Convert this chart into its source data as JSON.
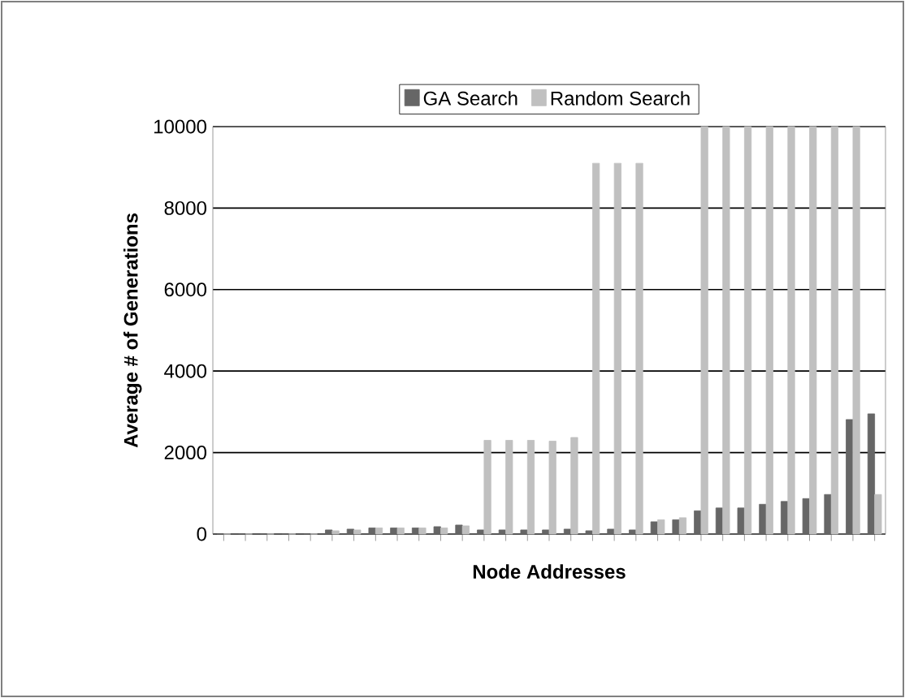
{
  "chart_data": {
    "type": "bar",
    "xlabel": "Node Addresses",
    "ylabel": "Average # of Generations",
    "categories": [
      null,
      null,
      null,
      null,
      null,
      null,
      null,
      null,
      null,
      null,
      null,
      null,
      null,
      null,
      null,
      null,
      null,
      null,
      null,
      null,
      null,
      null,
      null,
      null,
      null,
      null,
      null,
      null,
      null,
      null,
      null
    ],
    "series": [
      {
        "name": "GA Search",
        "color": "#666666",
        "values": [
          0,
          0,
          0,
          0,
          0,
          100,
          120,
          150,
          150,
          150,
          180,
          220,
          100,
          100,
          100,
          100,
          120,
          80,
          120,
          100,
          300,
          350,
          570,
          640,
          640,
          730,
          800,
          870,
          970,
          2810,
          2950
        ]
      },
      {
        "name": "Random Search",
        "color": "#c0c0c0",
        "values": [
          0,
          0,
          0,
          0,
          0,
          80,
          100,
          150,
          150,
          150,
          150,
          200,
          2300,
          2300,
          2300,
          2280,
          2370,
          9100,
          9100,
          9100,
          350,
          400,
          10000,
          10000,
          10000,
          10000,
          10000,
          10000,
          10000,
          10000,
          970
        ]
      }
    ],
    "ylim": [
      0,
      10000
    ],
    "yticks": [
      0,
      2000,
      4000,
      6000,
      8000,
      10000
    ],
    "grid": "y",
    "legend": "top"
  }
}
